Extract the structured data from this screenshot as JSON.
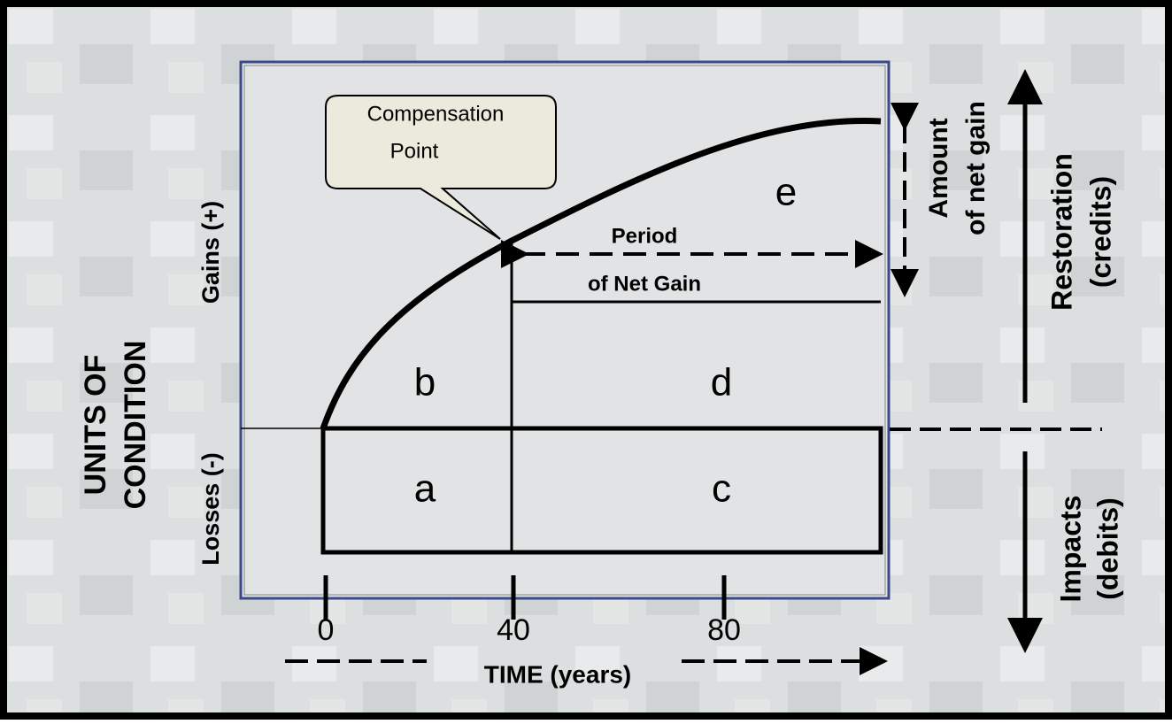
{
  "y_axis": {
    "label": [
      "UNITS OF",
      "CONDITION"
    ],
    "gains": "Gains (+)",
    "losses": "Losses (-)"
  },
  "x_axis": {
    "label": "TIME (years)",
    "ticks": [
      "0",
      "40",
      "80"
    ]
  },
  "callout": [
    "Compensation",
    "Point"
  ],
  "regions": {
    "a": "a",
    "b": "b",
    "c": "c",
    "d": "d",
    "e": "e"
  },
  "period": [
    "Period",
    "of Net Gain"
  ],
  "net_gain": [
    "Amount",
    "of net gain"
  ],
  "restoration": [
    "Restoration",
    "(credits)"
  ],
  "impacts": [
    "Impacts",
    "(debits)"
  ]
}
